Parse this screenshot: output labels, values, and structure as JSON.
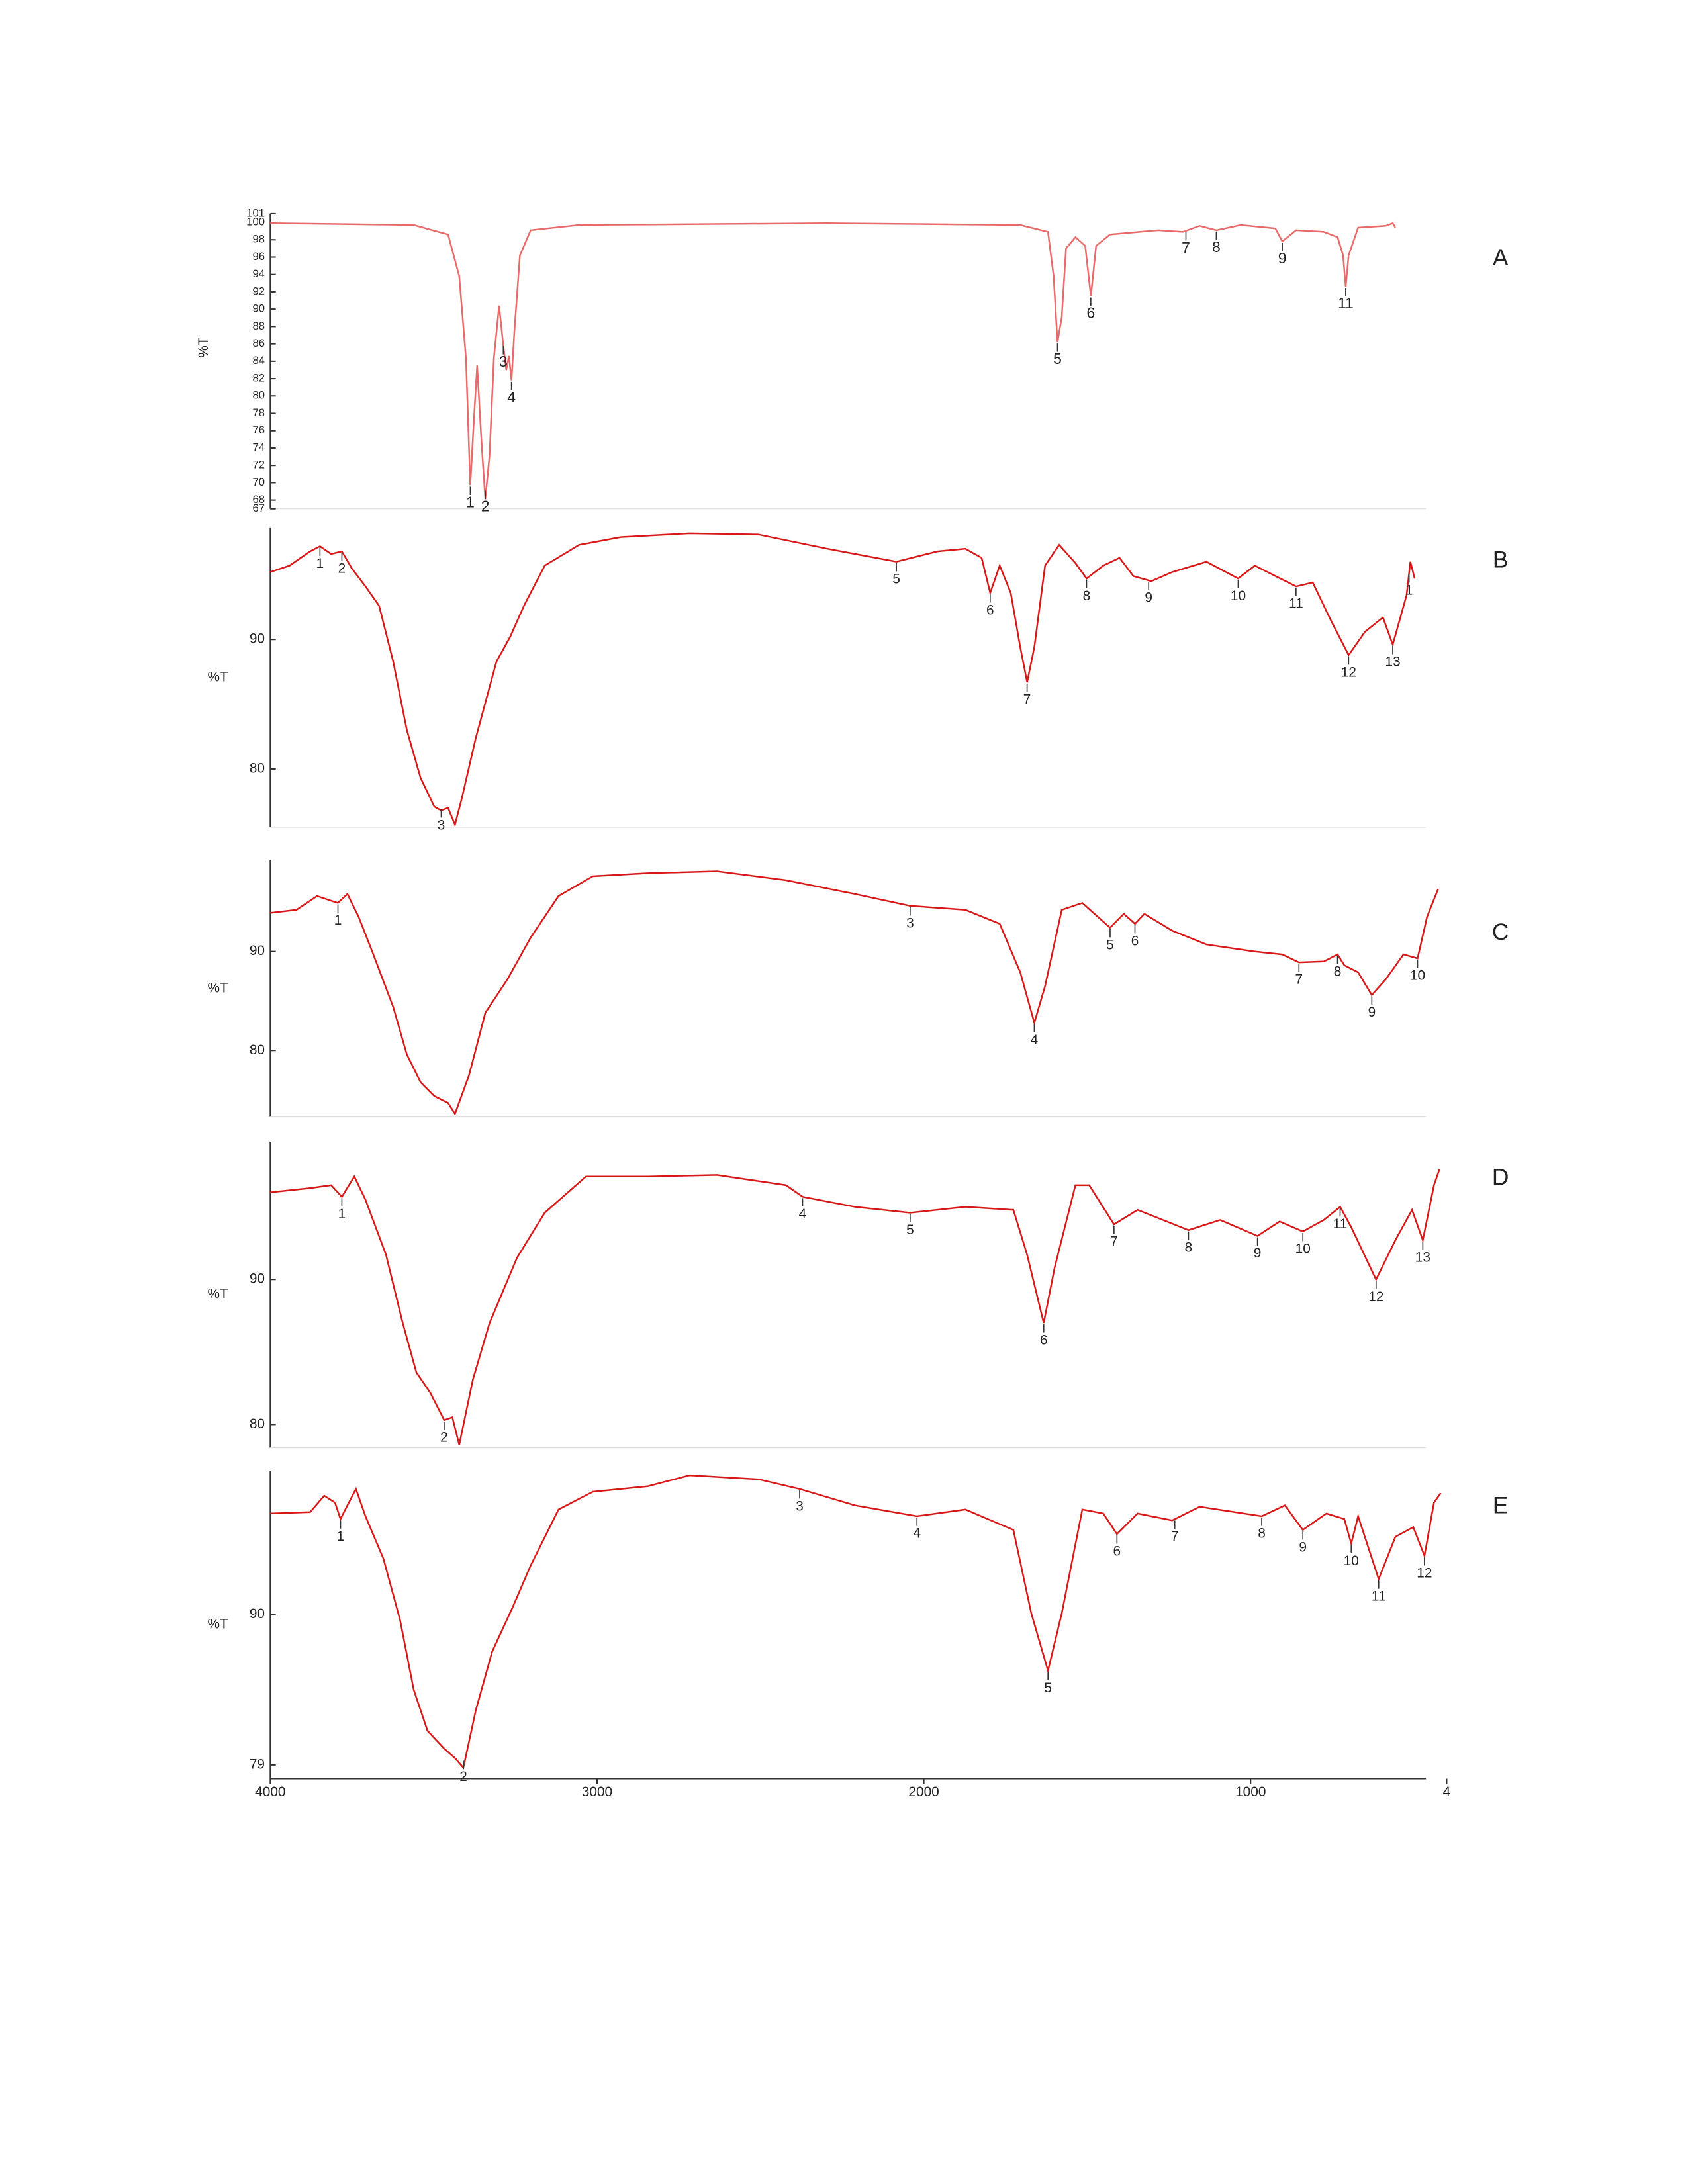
{
  "chart_data": [
    {
      "type": "line",
      "label": "A",
      "ylabel": "%T",
      "color": "#e86a6a",
      "xlim": [
        4000,
        400
      ],
      "ylim": [
        67,
        101
      ],
      "yticks": [
        67,
        68,
        70,
        72,
        74,
        76,
        78,
        80,
        82,
        84,
        86,
        88,
        90,
        92,
        94,
        96,
        98,
        100,
        101
      ],
      "x": [
        4000,
        3561,
        3456,
        3422,
        3401,
        3388,
        3376,
        3367,
        3354,
        3342,
        3329,
        3316,
        3300,
        3287,
        3278,
        3270,
        3262,
        3253,
        3236,
        3203,
        3055,
        2295,
        1705,
        1620,
        1603,
        1591,
        1578,
        1565,
        1536,
        1506,
        1489,
        1473,
        1430,
        1283,
        1207,
        1156,
        1105,
        1030,
        924,
        903,
        861,
        776,
        734,
        717,
        709,
        700,
        671,
        586,
        565,
        557
      ],
      "values": [
        99.9,
        99.7,
        98.6,
        93.8,
        84.3,
        69.7,
        78,
        83.5,
        74.8,
        68.1,
        73.2,
        84.3,
        90.4,
        85.9,
        83,
        84.6,
        81.8,
        87.5,
        96.2,
        99.1,
        99.7,
        99.9,
        99.7,
        98.9,
        93.8,
        86.2,
        89.1,
        97,
        98.3,
        97.3,
        91.5,
        97.3,
        98.6,
        99.1,
        98.9,
        99.6,
        99.1,
        99.7,
        99.3,
        97.8,
        99.1,
        98.9,
        98.3,
        96.2,
        92.6,
        96.2,
        99.4,
        99.6,
        99.9,
        99.4
      ],
      "peaks": [
        {
          "label": "1",
          "x": 3388
        },
        {
          "label": "2",
          "x": 3342
        },
        {
          "label": "3",
          "x": 3287
        },
        {
          "label": "4",
          "x": 3262
        },
        {
          "label": "5",
          "x": 1591
        },
        {
          "label": "6",
          "x": 1489
        },
        {
          "label": "7",
          "x": 1198
        },
        {
          "label": "8",
          "x": 1105
        },
        {
          "label": "9",
          "x": 903
        },
        {
          "label": "11",
          "x": 709
        }
      ]
    },
    {
      "type": "line",
      "label": "B",
      "ylabel": "%T",
      "color": "#d81818",
      "xlim": [
        4000,
        400
      ],
      "ylim": [
        75.5,
        98.6
      ],
      "yticks": [
        80,
        90
      ],
      "x": [
        4000,
        3941,
        3878,
        3848,
        3814,
        3781,
        3751,
        3709,
        3667,
        3624,
        3582,
        3540,
        3498,
        3477,
        3456,
        3435,
        3414,
        3371,
        3308,
        3266,
        3224,
        3160,
        3055,
        2928,
        2717,
        2506,
        2295,
        2084,
        1958,
        1873,
        1823,
        1797,
        1768,
        1734,
        1705,
        1684,
        1662,
        1629,
        1586,
        1536,
        1502,
        1451,
        1401,
        1359,
        1304,
        1240,
        1135,
        1038,
        987,
        924,
        861,
        810,
        755,
        700,
        650,
        595,
        565,
        544,
        523,
        511,
        498
      ],
      "values": [
        95.2,
        95.7,
        96.8,
        97.2,
        96.6,
        96.8,
        95.5,
        94.1,
        92.6,
        88.3,
        83,
        79.3,
        77.1,
        76.8,
        77,
        75.7,
        77.7,
        82.4,
        88.3,
        90.2,
        92.6,
        95.7,
        97.3,
        97.9,
        98.2,
        98.1,
        97,
        96,
        96.8,
        97,
        96.3,
        93.6,
        95.7,
        93.6,
        89.4,
        86.7,
        89.4,
        95.7,
        97.3,
        95.9,
        94.7,
        95.7,
        96.3,
        94.9,
        94.5,
        95.2,
        96,
        94.7,
        95.7,
        94.9,
        94.1,
        94.4,
        91.5,
        88.8,
        90.6,
        91.7,
        89.6,
        91.5,
        93.4,
        96,
        94.7
      ],
      "peaks": [
        {
          "label": "1",
          "x": 3848
        },
        {
          "label": "2",
          "x": 3781
        },
        {
          "label": "3",
          "x": 3477
        },
        {
          "label": "5",
          "x": 2084
        },
        {
          "label": "6",
          "x": 1797
        },
        {
          "label": "7",
          "x": 1684
        },
        {
          "label": "8",
          "x": 1502
        },
        {
          "label": "9",
          "x": 1312
        },
        {
          "label": "10",
          "x": 1038
        },
        {
          "label": "11",
          "x": 861
        },
        {
          "label": "12",
          "x": 700
        },
        {
          "label": "13",
          "x": 565
        },
        {
          "label": "1",
          "x": 515
        }
      ]
    },
    {
      "type": "line",
      "label": "C",
      "ylabel": "%T",
      "color": "#d81818",
      "xlim": [
        4000,
        400
      ],
      "ylim": [
        73.3,
        99.2
      ],
      "yticks": [
        80,
        90
      ],
      "x": [
        4000,
        3920,
        3857,
        3793,
        3764,
        3730,
        3688,
        3624,
        3582,
        3540,
        3498,
        3456,
        3435,
        3392,
        3342,
        3274,
        3203,
        3118,
        3013,
        2844,
        2633,
        2422,
        2211,
        2042,
        1873,
        1768,
        1705,
        1662,
        1629,
        1578,
        1515,
        1430,
        1388,
        1354,
        1325,
        1240,
        1135,
        987,
        903,
        852,
        776,
        734,
        713,
        671,
        629,
        586,
        532,
        489,
        460,
        426
      ],
      "values": [
        93.9,
        94.2,
        95.6,
        94.9,
        95.8,
        93.5,
        90,
        84.4,
        79.6,
        76.8,
        75.4,
        74.7,
        73.6,
        77.5,
        83.8,
        87.2,
        91.4,
        95.6,
        97.6,
        97.9,
        98.1,
        97.2,
        95.8,
        94.6,
        94.2,
        92.8,
        87.9,
        82.8,
        86.5,
        94.2,
        94.9,
        92.4,
        93.8,
        92.8,
        93.8,
        92.1,
        90.7,
        90,
        89.7,
        88.9,
        89,
        89.7,
        88.6,
        87.9,
        85.6,
        87.2,
        89.7,
        89.3,
        93.5,
        96.3
      ],
      "peaks": [
        {
          "label": "1",
          "x": 3793
        },
        {
          "label": "3",
          "x": 2042
        },
        {
          "label": "4",
          "x": 1662
        },
        {
          "label": "5",
          "x": 1430
        },
        {
          "label": "6",
          "x": 1354
        },
        {
          "label": "7",
          "x": 852
        },
        {
          "label": "8",
          "x": 734
        },
        {
          "label": "9",
          "x": 629
        },
        {
          "label": "10",
          "x": 489
        }
      ]
    },
    {
      "type": "line",
      "label": "D",
      "ylabel": "%T",
      "color": "#d81818",
      "xlim": [
        4000,
        400
      ],
      "ylim": [
        78.4,
        99.5
      ],
      "yticks": [
        80,
        90
      ],
      "x": [
        4000,
        3878,
        3814,
        3781,
        3743,
        3709,
        3646,
        3595,
        3553,
        3511,
        3468,
        3443,
        3422,
        3380,
        3329,
        3245,
        3160,
        3034,
        2844,
        2633,
        2422,
        2371,
        2211,
        2042,
        1873,
        1726,
        1684,
        1633,
        1600,
        1536,
        1494,
        1418,
        1346,
        1190,
        1093,
        979,
        911,
        840,
        776,
        726,
        692,
        616,
        557,
        506,
        473,
        439,
        422
      ],
      "values": [
        96,
        96.3,
        96.5,
        95.7,
        97.1,
        95.5,
        91.7,
        87,
        83.6,
        82.2,
        80.3,
        80.5,
        78.6,
        83.1,
        87,
        91.5,
        94.6,
        97.1,
        97.1,
        97.2,
        96.5,
        95.7,
        95,
        94.6,
        95,
        94.8,
        91.7,
        87,
        90.8,
        96.5,
        96.5,
        93.8,
        94.8,
        93.4,
        94.1,
        93,
        94,
        93.3,
        94.1,
        95,
        93.6,
        90,
        92.7,
        94.8,
        92.7,
        96.5,
        97.6
      ],
      "peaks": [
        {
          "label": "1",
          "x": 3781
        },
        {
          "label": "2",
          "x": 3468
        },
        {
          "label": "4",
          "x": 2371
        },
        {
          "label": "5",
          "x": 2042
        },
        {
          "label": "6",
          "x": 1633
        },
        {
          "label": "7",
          "x": 1418
        },
        {
          "label": "8",
          "x": 1190
        },
        {
          "label": "9",
          "x": 979
        },
        {
          "label": "10",
          "x": 840
        },
        {
          "label": "11",
          "x": 726
        },
        {
          "label": "12",
          "x": 616
        },
        {
          "label": "13",
          "x": 473
        }
      ]
    },
    {
      "type": "line",
      "label": "E",
      "ylabel": "%T",
      "color": "#d81818",
      "xlim": [
        4000,
        400
      ],
      "ylim": [
        78,
        100.5
      ],
      "yticks": [
        79,
        90
      ],
      "xticks": [
        4000,
        3000,
        2000,
        1000,
        {
          "value": 400,
          "label": "4"
        }
      ],
      "x": [
        4000,
        3878,
        3835,
        3802,
        3785,
        3764,
        3738,
        3709,
        3654,
        3603,
        3561,
        3519,
        3468,
        3435,
        3409,
        3371,
        3321,
        3257,
        3203,
        3118,
        3013,
        2844,
        2717,
        2506,
        2380,
        2211,
        2021,
        1873,
        1726,
        1671,
        1620,
        1578,
        1515,
        1451,
        1409,
        1346,
        1240,
        1156,
        966,
        895,
        840,
        768,
        713,
        692,
        671,
        608,
        557,
        502,
        468,
        439,
        418
      ],
      "values": [
        97.4,
        97.5,
        98.7,
        98.2,
        97,
        98,
        99.2,
        97.2,
        94.1,
        89.6,
        84.5,
        81.5,
        80.2,
        79.5,
        78.8,
        83,
        87.3,
        90.6,
        93.6,
        97.7,
        99,
        99.4,
        100.2,
        99.9,
        99.2,
        98,
        97.2,
        97.7,
        96.2,
        90.1,
        85.9,
        90.1,
        97.7,
        97.4,
        95.9,
        97.4,
        96.9,
        97.9,
        97.2,
        98,
        96.2,
        97.4,
        97,
        95.2,
        97.2,
        92.6,
        95.7,
        96.4,
        94.3,
        98.2,
        98.9
      ],
      "peaks": [
        {
          "label": "1",
          "x": 3785
        },
        {
          "label": "2",
          "x": 3409
        },
        {
          "label": "3",
          "x": 2380
        },
        {
          "label": "4",
          "x": 2021
        },
        {
          "label": "5",
          "x": 1620
        },
        {
          "label": "6",
          "x": 1409
        },
        {
          "label": "7",
          "x": 1232
        },
        {
          "label": "8",
          "x": 966
        },
        {
          "label": "9",
          "x": 840
        },
        {
          "label": "10",
          "x": 692
        },
        {
          "label": "11",
          "x": 608
        },
        {
          "label": "12",
          "x": 468
        }
      ]
    }
  ]
}
